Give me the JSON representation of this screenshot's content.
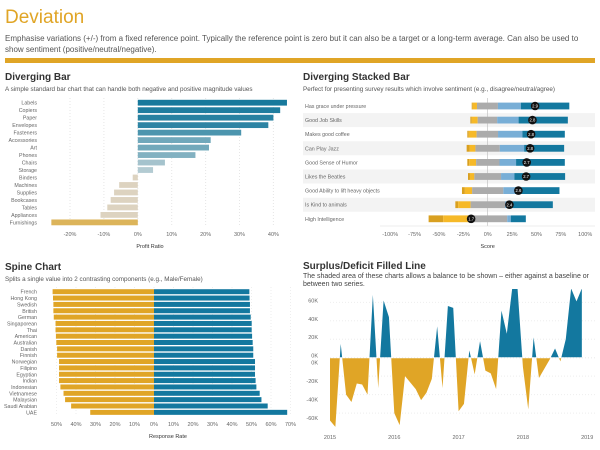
{
  "header": {
    "title": "Deviation",
    "description": "Emphasise variations (+/-) from a fixed reference point. Typically the reference point is zero but it can also be a target or a long-term average. Can also be used to show sentiment (positive/neutral/negative).",
    "accent": "#e0a526"
  },
  "panels": [
    {
      "title": "Diverging Bar",
      "subtitle": "A simple standard bar chart that can handle both negative and positive magnitude values"
    },
    {
      "title": "Diverging Stacked Bar",
      "subtitle": "Perfect for presenting survey results which involve sentiment (e.g., disagree/neutral/agree)"
    },
    {
      "title": "Spine Chart",
      "subtitle": "Splits a single value into 2 contrasting components (e.g., Male/Female)"
    },
    {
      "title": "Surplus/Deficit Filled Line",
      "subtitle": "The shaded area of these charts allows a balance to be shown – either against a baseline or between two series."
    }
  ],
  "chart_data": [
    {
      "type": "bar",
      "orientation": "horizontal",
      "xlabel": "Profit Ratio",
      "xlim": [
        -30,
        45
      ],
      "ticks": [
        "-20%",
        "-10%",
        "0%",
        "10%",
        "20%",
        "30%",
        "40%"
      ],
      "tick_values": [
        -20,
        -10,
        0,
        10,
        20,
        30,
        40
      ],
      "categories": [
        "Labels",
        "Copiers",
        "Paper",
        "Envelopes",
        "Fasteners",
        "Accessories",
        "Art",
        "Phones",
        "Chairs",
        "Storage",
        "Binders",
        "Machines",
        "Supplies",
        "Bookcases",
        "Tables",
        "Appliances",
        "Furnishings"
      ],
      "values": [
        44,
        42,
        40,
        38.5,
        30.5,
        21.5,
        21,
        17,
        8,
        4.5,
        -1.5,
        -5.5,
        -7,
        -8,
        -9,
        -11,
        -25.5
      ],
      "colors": {
        "positive_high": "#17799c",
        "positive_low": "#c5d4d8",
        "negative_low": "#ddd3c0",
        "negative_high": "#dcb45a"
      }
    },
    {
      "type": "bar",
      "stacked": true,
      "orientation": "horizontal",
      "xlabel": "Score",
      "xlim": [
        -110,
        105
      ],
      "ticks": [
        "-100%",
        "-75%",
        "-50%",
        "-25%",
        "0%",
        "25%",
        "50%",
        "75%",
        "100%"
      ],
      "tick_values": [
        -100,
        -75,
        -50,
        -25,
        0,
        25,
        50,
        75,
        100
      ],
      "segment_colors": [
        "#d9a020",
        "#f6b928",
        "#ababab",
        "#78aed6",
        "#13789f"
      ],
      "categories": [
        "Has grace under pressure",
        "Good Job Skills",
        "Makes good coffee",
        "Can Play Jazz",
        "Good Sense of Humor",
        "Likes the Beatles",
        "Good Ability to lift heavy objects",
        "Is Kind to animals",
        "High Intelligence"
      ],
      "start": [
        -16.4,
        -17.8,
        -20.9,
        -21.6,
        -20.9,
        -20.2,
        -26.4,
        -33.2,
        -60.6
      ],
      "segments": [
        [
          1,
          4.4,
          21.5,
          23.5,
          49.7
        ],
        [
          1.5,
          6,
          20,
          22,
          50.5
        ],
        [
          1.5,
          8,
          22,
          25,
          43.5
        ],
        [
          3,
          6,
          25,
          25,
          41
        ],
        [
          2,
          7,
          24,
          17,
          50
        ],
        [
          2,
          4.5,
          27.4,
          13.7,
          52
        ],
        [
          3,
          7.4,
          32,
          12,
          45.6
        ],
        [
          3,
          12.7,
          35.3,
          2,
          47
        ],
        [
          15,
          31,
          34.6,
          3.7,
          15.4
        ]
      ],
      "scores": [
        "2.9",
        "2.8",
        "2.8",
        "2.8",
        "2.7",
        "2.7",
        "2.6",
        "2.4",
        "1.7"
      ],
      "score_marker_pct": [
        48.6,
        45.9,
        44.5,
        43.5,
        40,
        39.4,
        31.5,
        22.3,
        -17
      ]
    },
    {
      "type": "bar",
      "orientation": "horizontal",
      "xlabel": "Response Rate",
      "xlim": [
        -57,
        72
      ],
      "ticks": [
        "50%",
        "40%",
        "30%",
        "20%",
        "10%",
        "0%",
        "10%",
        "20%",
        "30%",
        "40%",
        "50%",
        "60%",
        "70%"
      ],
      "tick_values": [
        -50,
        -40,
        -30,
        -20,
        -10,
        0,
        10,
        20,
        30,
        40,
        50,
        60,
        70
      ],
      "categories": [
        "French",
        "Hong Kong",
        "Swedish",
        "British",
        "German",
        "Singaporean",
        "Thai",
        "American",
        "Australian",
        "Danish",
        "Finnish",
        "Norwegian",
        "Filipino",
        "Egyptian",
        "Indian",
        "Indonesian",
        "Vietnamese",
        "Malaysian",
        "Saudi Arabian",
        "UAE"
      ],
      "series": [
        {
          "values": [
            52,
            51.8,
            51.6,
            51.6,
            51.4,
            50.5,
            50.5,
            50.3,
            50.1,
            49.7,
            49.7,
            48.7,
            48.7,
            48.7,
            48.7,
            48,
            46.4,
            45.6,
            42.5,
            32.7
          ],
          "color": "#e0a526"
        },
        {
          "values": [
            48.9,
            49,
            49.2,
            49.2,
            49.6,
            50.1,
            50.1,
            50.3,
            50.6,
            50.9,
            50.9,
            51.8,
            51.8,
            51.8,
            52.1,
            52.5,
            54.2,
            55.1,
            58.3,
            68.3
          ],
          "color": "#13789f"
        }
      ]
    },
    {
      "type": "area",
      "ylim": [
        -75,
        75
      ],
      "xlim": [
        "2015-01",
        "2019-01"
      ],
      "yticks": [
        "60K",
        "40K",
        "20K",
        "0K",
        "0K",
        "-20K",
        "-40K",
        "-60K"
      ],
      "ytick_values": [
        60,
        40,
        20,
        0,
        0,
        -20,
        -40,
        -60
      ],
      "xticks": [
        "2015",
        "2016",
        "2017",
        "2018",
        "2019"
      ],
      "positive_color": "#13789f",
      "negative_color": "#e0a526",
      "x_start": "2015-01",
      "x_step": "month",
      "values": [
        -68,
        -78,
        15,
        -40,
        -48,
        -28,
        -29,
        -40,
        68,
        -33,
        62,
        44,
        -60,
        -73,
        -20,
        -27,
        -34,
        -46,
        -38,
        -23,
        34,
        -33,
        56,
        54,
        -58,
        -50,
        8,
        -18,
        18,
        -14,
        -17,
        -34,
        51,
        26,
        80,
        80,
        -10,
        -56,
        22,
        -22,
        -12,
        -2,
        10,
        -4,
        20,
        76,
        61,
        80
      ]
    }
  ]
}
